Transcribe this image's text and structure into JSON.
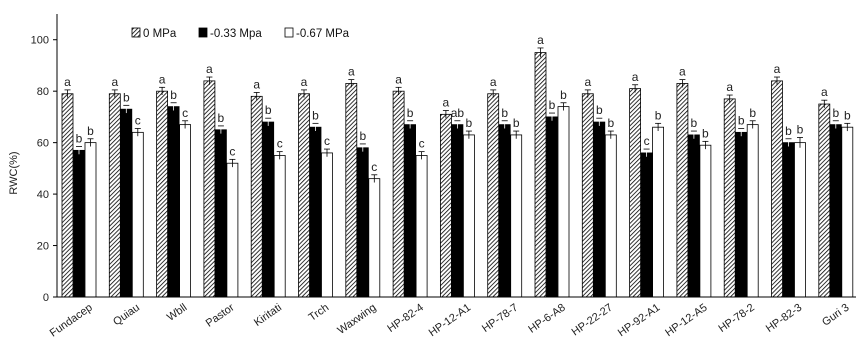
{
  "chart_data": {
    "type": "bar",
    "title": "",
    "xlabel": "",
    "ylabel": "RWC(%)",
    "ylim": [
      0,
      110
    ],
    "yticks": [
      0,
      20,
      40,
      60,
      80,
      100
    ],
    "grid": false,
    "legend_position": "top-left",
    "colors": {
      "bar_stroke": "#000000",
      "solid": "#000000",
      "open": "#ffffff",
      "hatch": "#000000",
      "axis": "#000000"
    },
    "categories": [
      "Fundacep",
      "Quiau",
      "Wbll",
      "Pastor",
      "Kiritati",
      "Trch",
      "Waxwing",
      "HP-82-4",
      "HP-12-A1",
      "HP-78-7",
      "HP-6-A8",
      "HP-22-27",
      "HP-92-A1",
      "HP-12-A5",
      "HP-78-2",
      "HP-82-3",
      "Guri 3"
    ],
    "series": [
      {
        "name": "0 MPa",
        "fill": "hatch",
        "values": [
          79,
          79,
          80,
          84,
          78,
          79,
          83,
          80,
          71,
          79,
          95,
          79,
          81,
          83,
          77,
          84,
          75
        ],
        "errors": [
          1.5,
          1.5,
          1.5,
          1.5,
          1.5,
          1.5,
          1.5,
          1.5,
          1.5,
          1.5,
          1.8,
          1.5,
          1.5,
          1.5,
          1.5,
          1.5,
          1.5
        ],
        "letters": [
          "a",
          "a",
          "a",
          "a",
          "a",
          "a",
          "a",
          "a",
          "a",
          "a",
          "a",
          "a",
          "a",
          "a",
          "a",
          "a",
          "a"
        ]
      },
      {
        "name": "-0.33 Mpa",
        "fill": "solid",
        "values": [
          57,
          73,
          74,
          65,
          68,
          66,
          58,
          67,
          67,
          67,
          70,
          68,
          56,
          63,
          64,
          60,
          67
        ],
        "errors": [
          1.5,
          1.5,
          1.5,
          1.5,
          1.5,
          1.5,
          1.5,
          1.5,
          1.5,
          1.5,
          1.5,
          1.5,
          1.5,
          1.5,
          1.5,
          1.5,
          1.5
        ],
        "letters": [
          "b",
          "b",
          "b",
          "b",
          "b",
          "b",
          "b",
          "b",
          "ab",
          "b",
          "b",
          "b",
          "c",
          "b",
          "b",
          "b",
          "b"
        ]
      },
      {
        "name": "-0.67 MPa",
        "fill": "open",
        "values": [
          60,
          64,
          67,
          52,
          55,
          56,
          46,
          55,
          63,
          63,
          74,
          63,
          66,
          59,
          67,
          60,
          66
        ],
        "errors": [
          1.5,
          1.5,
          1.5,
          1.5,
          1.5,
          1.5,
          1.5,
          1.5,
          1.5,
          1.5,
          1.5,
          1.5,
          1.5,
          1.5,
          1.5,
          2.0,
          1.5
        ],
        "letters": [
          "b",
          "c",
          "c",
          "c",
          "c",
          "c",
          "c",
          "c",
          "b",
          "b",
          "b",
          "b",
          "b",
          "b",
          "b",
          "b",
          "b"
        ]
      }
    ]
  }
}
